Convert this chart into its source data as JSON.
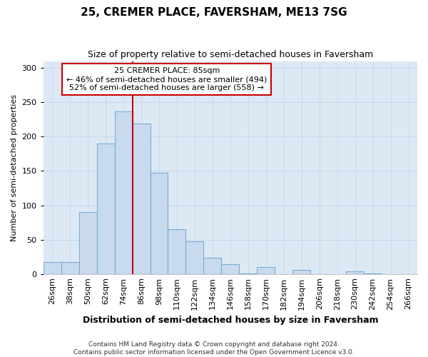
{
  "title": "25, CREMER PLACE, FAVERSHAM, ME13 7SG",
  "subtitle": "Size of property relative to semi-detached houses in Faversham",
  "xlabel": "Distribution of semi-detached houses by size in Faversham",
  "ylabel": "Number of semi-detached properties",
  "categories": [
    "26sqm",
    "38sqm",
    "50sqm",
    "62sqm",
    "74sqm",
    "86sqm",
    "98sqm",
    "110sqm",
    "122sqm",
    "134sqm",
    "146sqm",
    "158sqm",
    "170sqm",
    "182sqm",
    "194sqm",
    "206sqm",
    "218sqm",
    "230sqm",
    "242sqm",
    "254sqm",
    "266sqm"
  ],
  "bar_values": [
    17,
    17,
    90,
    190,
    237,
    219,
    147,
    65,
    47,
    24,
    14,
    1,
    10,
    0,
    6,
    0,
    0,
    4,
    1,
    0,
    0
  ],
  "bar_color": "#c9d9ee",
  "bar_edge_color": "#7aadd4",
  "property_line_color": "#cc0000",
  "annotation_title": "25 CREMER PLACE: 85sqm",
  "annotation_line1": "← 46% of semi-detached houses are smaller (494)",
  "annotation_line2": "52% of semi-detached houses are larger (558) →",
  "annotation_box_color": "#ffffff",
  "annotation_box_edge": "#cc0000",
  "ylim": [
    0,
    310
  ],
  "yticks": [
    0,
    50,
    100,
    150,
    200,
    250,
    300
  ],
  "grid_color": "#c8d8e8",
  "background_color": "#dce9f5",
  "footer_line1": "Contains HM Land Registry data © Crown copyright and database right 2024.",
  "footer_line2": "Contains public sector information licensed under the Open Government Licence v3.0.",
  "title_fontsize": 11,
  "subtitle_fontsize": 9,
  "xlabel_fontsize": 9,
  "ylabel_fontsize": 8,
  "tick_fontsize": 8,
  "annotation_fontsize": 8,
  "footer_fontsize": 6.5
}
